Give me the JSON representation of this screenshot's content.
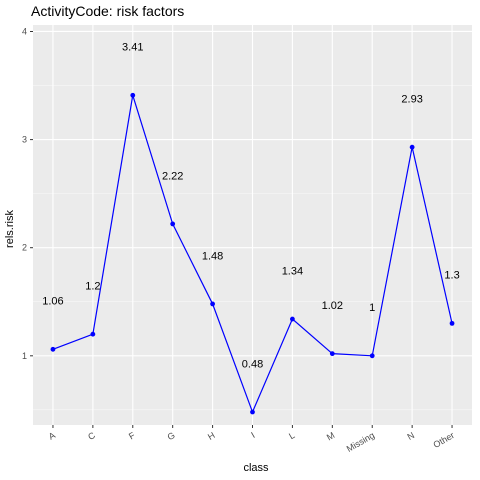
{
  "chart_data": {
    "type": "line",
    "title": "ActivityCode: risk factors",
    "xlabel": "class",
    "ylabel": "rels.risk",
    "categories": [
      "A",
      "C",
      "F",
      "G",
      "H",
      "I",
      "L",
      "M",
      "Missing",
      "N",
      "Other"
    ],
    "values": [
      1.06,
      1.2,
      3.41,
      2.22,
      1.48,
      0.48,
      1.34,
      1.02,
      1,
      2.93,
      1.3
    ],
    "data_labels": [
      "1.06",
      "1.2",
      "3.41",
      "2.22",
      "1.48",
      "0.48",
      "1.34",
      "1.02",
      "1",
      "2.93",
      "1.3"
    ],
    "ylim": [
      0.36,
      4.06
    ],
    "yticks": [
      1,
      2,
      3,
      4
    ],
    "ytick_labels": [
      "1",
      "2",
      "3",
      "4"
    ],
    "x_tick_rotation": 30,
    "grid": true,
    "label_offset": 0.45,
    "colors": {
      "line": "#0000ff",
      "points": "#0000ff",
      "panel_background": "#ebebeb",
      "grid_major": "#ffffff"
    }
  }
}
